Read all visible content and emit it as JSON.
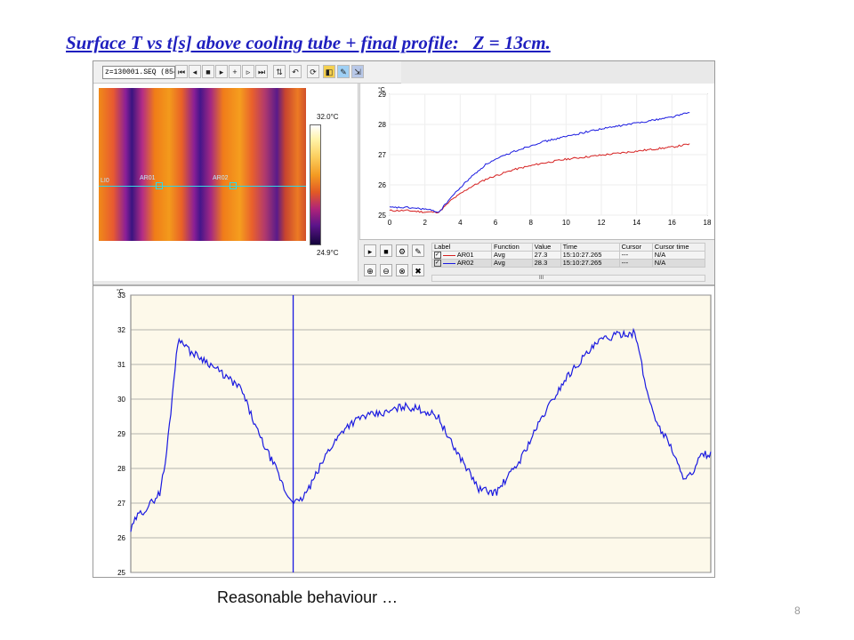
{
  "slide": {
    "title": "Surface T vs t[s] above cooling tube + final profile:   Z = 13cm.",
    "caption": "Reasonable behaviour …",
    "page_number": "8"
  },
  "toolbar": {
    "file_name": "z=130001.SEQ (854)",
    "buttons": [
      "first-frame-icon",
      "prev-frame-icon",
      "stop-icon",
      "play-icon",
      "plus-icon",
      "next-icon",
      "last-icon",
      "step-icon",
      "frame-step-icon",
      "refresh-icon",
      "settings-icon",
      "tools-icon",
      "export-icon"
    ]
  },
  "ir_image": {
    "line_label": "LI0",
    "roi_labels": [
      "AR01",
      "AR02"
    ],
    "scale_max": "32.0°C",
    "scale_min": "24.9°C"
  },
  "results_table": {
    "headers": [
      "Label",
      "Function",
      "Value",
      "Time",
      "Cursor",
      "Cursor time"
    ],
    "rows": [
      [
        "AR01",
        "Avg",
        "27.3",
        "15:10:27.265",
        "---",
        "N/A"
      ],
      [
        "AR02",
        "Avg",
        "28.3",
        "15:10:27.265",
        "---",
        "N/A"
      ]
    ],
    "scroll_mark": "III"
  },
  "colors": {
    "ar01": "#d62020",
    "ar02": "#1a1ae0",
    "profile": "#1a1ae0",
    "plot_bg": "#fdf9ea"
  },
  "chart_data": [
    {
      "type": "line",
      "ylabel": "°C",
      "xlim": [
        0,
        18
      ],
      "ylim": [
        25,
        29
      ],
      "x_ticks": [
        "0",
        "2",
        "4",
        "6",
        "8",
        "10",
        "12",
        "14",
        "16",
        "18"
      ],
      "y_ticks": [
        "25",
        "26",
        "27",
        "28",
        "29"
      ],
      "series": [
        {
          "name": "AR01",
          "color": "#d62020",
          "x": [
            0,
            1,
            2,
            2.8,
            3.5,
            4.5,
            5.5,
            7,
            8.5,
            10,
            11.5,
            13,
            14.5,
            16,
            17
          ],
          "y": [
            25.15,
            25.15,
            25.1,
            25.1,
            25.5,
            25.9,
            26.2,
            26.5,
            26.7,
            26.85,
            26.95,
            27.05,
            27.15,
            27.25,
            27.35
          ]
        },
        {
          "name": "AR02",
          "color": "#1a1ae0",
          "x": [
            0,
            1,
            2,
            2.8,
            3.5,
            4.5,
            5.5,
            7,
            8.5,
            10,
            11.5,
            13,
            14.5,
            16,
            17
          ],
          "y": [
            25.25,
            25.25,
            25.2,
            25.1,
            25.6,
            26.2,
            26.7,
            27.1,
            27.4,
            27.6,
            27.8,
            27.95,
            28.1,
            28.25,
            28.4
          ]
        }
      ]
    },
    {
      "type": "line",
      "ylabel": "°C",
      "ylim": [
        25,
        33
      ],
      "y_ticks": [
        "25",
        "26",
        "27",
        "28",
        "29",
        "30",
        "31",
        "32",
        "33"
      ],
      "cursor_x": 0.28,
      "series": [
        {
          "name": "LI0",
          "color": "#1a1ae0",
          "x": [
            0,
            0.01,
            0.03,
            0.05,
            0.06,
            0.07,
            0.08,
            0.09,
            0.1,
            0.13,
            0.16,
            0.19,
            0.22,
            0.25,
            0.27,
            0.29,
            0.31,
            0.34,
            0.37,
            0.4,
            0.44,
            0.47,
            0.5,
            0.53,
            0.55,
            0.58,
            0.6,
            0.63,
            0.67,
            0.71,
            0.75,
            0.78,
            0.81,
            0.83,
            0.85,
            0.87,
            0.89,
            0.91,
            0.93,
            0.95,
            0.97,
            0.98,
            0.99,
            1.0
          ],
          "y": [
            26.2,
            26.6,
            26.9,
            27.3,
            28.2,
            29.8,
            31.6,
            31.7,
            31.4,
            31.1,
            30.7,
            30.3,
            29.0,
            28.0,
            27.2,
            27.0,
            27.5,
            28.5,
            29.2,
            29.5,
            29.6,
            29.8,
            29.7,
            29.5,
            28.8,
            28.0,
            27.4,
            27.3,
            28.2,
            29.5,
            30.6,
            31.2,
            31.7,
            31.8,
            31.9,
            31.9,
            30.2,
            29.2,
            28.7,
            27.8,
            27.8,
            28.3,
            28.4,
            28.4
          ]
        }
      ]
    }
  ]
}
